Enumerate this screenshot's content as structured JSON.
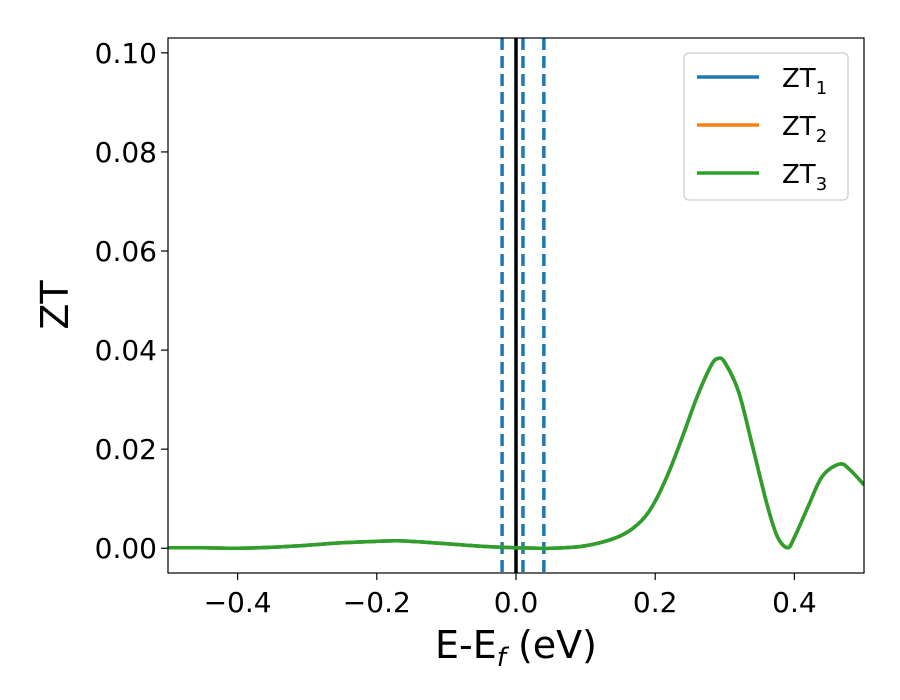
{
  "chart_data": {
    "type": "line",
    "xlabel": {
      "base": "E-E",
      "sub": "f",
      "suffix": " (eV)"
    },
    "ylabel": "ZT",
    "xlim": [
      -0.5,
      0.5
    ],
    "ylim": [
      -0.005,
      0.103
    ],
    "xticks": [
      {
        "v": -0.4,
        "label": "−0.4"
      },
      {
        "v": -0.2,
        "label": "−0.2"
      },
      {
        "v": 0.0,
        "label": "0.0"
      },
      {
        "v": 0.2,
        "label": "0.2"
      },
      {
        "v": 0.4,
        "label": "0.4"
      }
    ],
    "yticks": [
      {
        "v": 0.0,
        "label": "0.00"
      },
      {
        "v": 0.02,
        "label": "0.02"
      },
      {
        "v": 0.04,
        "label": "0.04"
      },
      {
        "v": 0.06,
        "label": "0.06"
      },
      {
        "v": 0.08,
        "label": "0.08"
      },
      {
        "v": 0.1,
        "label": "0.10"
      }
    ],
    "legend_position": "top-right",
    "grid": false,
    "vlines": [
      {
        "x": 0.0,
        "style": "solid",
        "color": "#000000"
      },
      {
        "x": -0.02,
        "style": "dashed",
        "color": "#1f77b4"
      },
      {
        "x": 0.01,
        "style": "dashed",
        "color": "#1f77b4"
      },
      {
        "x": 0.04,
        "style": "dashed",
        "color": "#1f77b4"
      }
    ],
    "series": [
      {
        "name": "ZT",
        "sub": "1",
        "color": "#1f77b4",
        "points": [
          [
            -0.5,
            0.0001
          ],
          [
            -0.45,
            0.0001
          ],
          [
            -0.4,
            0.0
          ],
          [
            -0.35,
            0.0002
          ],
          [
            -0.3,
            0.0006
          ],
          [
            -0.25,
            0.0011
          ],
          [
            -0.2,
            0.0014
          ],
          [
            -0.17,
            0.0015
          ],
          [
            -0.14,
            0.0013
          ],
          [
            -0.1,
            0.0009
          ],
          [
            -0.05,
            0.0004
          ],
          [
            0.0,
            0.0001
          ],
          [
            0.05,
            0.0
          ],
          [
            0.1,
            0.0005
          ],
          [
            0.15,
            0.0025
          ],
          [
            0.18,
            0.0055
          ],
          [
            0.2,
            0.0095
          ],
          [
            0.22,
            0.0155
          ],
          [
            0.24,
            0.0228
          ],
          [
            0.26,
            0.0305
          ],
          [
            0.28,
            0.0368
          ],
          [
            0.29,
            0.0383
          ],
          [
            0.3,
            0.0375
          ],
          [
            0.32,
            0.0315
          ],
          [
            0.34,
            0.0205
          ],
          [
            0.36,
            0.0092
          ],
          [
            0.375,
            0.0025
          ],
          [
            0.39,
            0.0001
          ],
          [
            0.4,
            0.0022
          ],
          [
            0.42,
            0.0085
          ],
          [
            0.44,
            0.0145
          ],
          [
            0.465,
            0.017
          ],
          [
            0.48,
            0.0158
          ],
          [
            0.5,
            0.0128
          ]
        ]
      },
      {
        "name": "ZT",
        "sub": "2",
        "color": "#ff7f0e",
        "points": [
          [
            -0.5,
            0.0001
          ],
          [
            -0.45,
            0.0001
          ],
          [
            -0.4,
            0.0
          ],
          [
            -0.35,
            0.0002
          ],
          [
            -0.3,
            0.0006
          ],
          [
            -0.25,
            0.0011
          ],
          [
            -0.2,
            0.0014
          ],
          [
            -0.17,
            0.0015
          ],
          [
            -0.14,
            0.0013
          ],
          [
            -0.1,
            0.0009
          ],
          [
            -0.05,
            0.0004
          ],
          [
            0.0,
            0.0001
          ],
          [
            0.05,
            0.0
          ],
          [
            0.1,
            0.0005
          ],
          [
            0.15,
            0.0025
          ],
          [
            0.18,
            0.0055
          ],
          [
            0.2,
            0.0095
          ],
          [
            0.22,
            0.0155
          ],
          [
            0.24,
            0.0228
          ],
          [
            0.26,
            0.0305
          ],
          [
            0.28,
            0.0368
          ],
          [
            0.29,
            0.0383
          ],
          [
            0.3,
            0.0375
          ],
          [
            0.32,
            0.0315
          ],
          [
            0.34,
            0.0205
          ],
          [
            0.36,
            0.0092
          ],
          [
            0.375,
            0.0025
          ],
          [
            0.39,
            0.0001
          ],
          [
            0.4,
            0.0022
          ],
          [
            0.42,
            0.0085
          ],
          [
            0.44,
            0.0145
          ],
          [
            0.465,
            0.017
          ],
          [
            0.48,
            0.0158
          ],
          [
            0.5,
            0.0128
          ]
        ]
      },
      {
        "name": "ZT",
        "sub": "3",
        "color": "#2ca02c",
        "points": [
          [
            -0.5,
            0.0001
          ],
          [
            -0.45,
            0.0001
          ],
          [
            -0.4,
            0.0
          ],
          [
            -0.35,
            0.0002
          ],
          [
            -0.3,
            0.0006
          ],
          [
            -0.25,
            0.0011
          ],
          [
            -0.2,
            0.0014
          ],
          [
            -0.17,
            0.0015
          ],
          [
            -0.14,
            0.0013
          ],
          [
            -0.1,
            0.0009
          ],
          [
            -0.05,
            0.0004
          ],
          [
            0.0,
            0.0001
          ],
          [
            0.05,
            0.0
          ],
          [
            0.1,
            0.0005
          ],
          [
            0.15,
            0.0025
          ],
          [
            0.18,
            0.0055
          ],
          [
            0.2,
            0.0095
          ],
          [
            0.22,
            0.0155
          ],
          [
            0.24,
            0.0228
          ],
          [
            0.26,
            0.0305
          ],
          [
            0.28,
            0.0368
          ],
          [
            0.29,
            0.0383
          ],
          [
            0.3,
            0.0375
          ],
          [
            0.32,
            0.0315
          ],
          [
            0.34,
            0.0205
          ],
          [
            0.36,
            0.0092
          ],
          [
            0.375,
            0.0025
          ],
          [
            0.39,
            0.0001
          ],
          [
            0.4,
            0.0022
          ],
          [
            0.42,
            0.0085
          ],
          [
            0.44,
            0.0145
          ],
          [
            0.465,
            0.017
          ],
          [
            0.48,
            0.0158
          ],
          [
            0.5,
            0.0128
          ]
        ]
      }
    ]
  }
}
